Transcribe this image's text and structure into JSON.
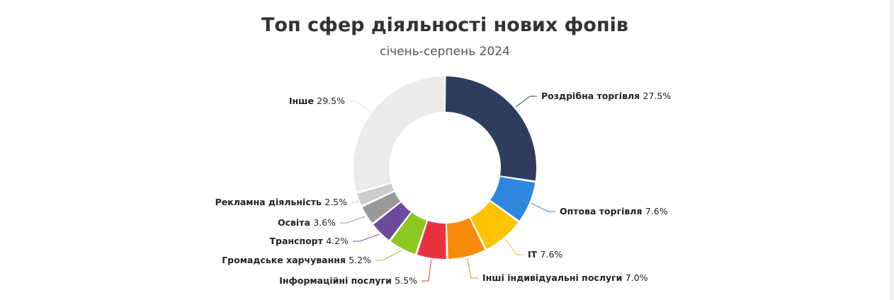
{
  "chart_data": {
    "type": "pie",
    "title": "Топ сфер діяльності нових фопів",
    "subtitle": "січень-серпень 2024",
    "value_suffix": "%",
    "slices": [
      {
        "label": "Роздрібна торгівля",
        "value": 27.5,
        "color": "#2e3d5e"
      },
      {
        "label": "Оптова торгівля",
        "value": 7.6,
        "color": "#2e86de"
      },
      {
        "label": "IT",
        "value": 7.6,
        "color": "#ffc300"
      },
      {
        "label": "Інші індивідуальні послуги",
        "value": 7.0,
        "color": "#f98b0a"
      },
      {
        "label": "Інформаційні послуги",
        "value": 5.5,
        "color": "#e8333f"
      },
      {
        "label": "Громадське харчування",
        "value": 5.2,
        "color": "#8cc820"
      },
      {
        "label": "Транспорт",
        "value": 4.2,
        "color": "#6c4a9a"
      },
      {
        "label": "Освіта",
        "value": 3.6,
        "color": "#999999"
      },
      {
        "label": "Рекламна діяльність",
        "value": 2.5,
        "color": "#cccccc"
      },
      {
        "label": "Інше",
        "value": 29.5,
        "color": "#ebebeb"
      }
    ]
  }
}
